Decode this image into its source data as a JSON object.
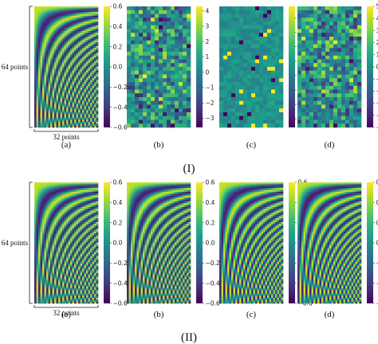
{
  "chart_data": [
    {
      "type": "heatmap",
      "group": "I",
      "caption": "(a)",
      "pattern": "basis",
      "colorbar_ticks": [
        0.6,
        0.4,
        0.2,
        0.0,
        -0.2,
        -0.4,
        -0.6
      ],
      "clim": [
        -0.6,
        0.6
      ],
      "annotations": [
        "64 points",
        "32 points"
      ]
    },
    {
      "type": "heatmap",
      "group": "I",
      "caption": "(b)",
      "pattern": "noise",
      "colorbar_ticks": [
        4,
        3,
        2,
        1,
        0,
        -1,
        -2,
        -3
      ],
      "clim": [
        -3.6,
        4.3
      ]
    },
    {
      "type": "heatmap",
      "group": "I",
      "caption": "(c)",
      "pattern": "sparse",
      "colorbar_ticks": [
        4,
        3,
        2,
        1,
        0,
        -1,
        -2,
        -3
      ],
      "clim": [
        -3.6,
        4.8
      ]
    },
    {
      "type": "heatmap",
      "group": "I",
      "caption": "(d)",
      "pattern": "noise",
      "colorbar_ticks": [
        5,
        4,
        3,
        2,
        1,
        0,
        -1,
        -2,
        -3,
        -4,
        -5
      ],
      "clim": [
        -5,
        5
      ]
    },
    {
      "type": "heatmap",
      "group": "II",
      "caption": "(a)",
      "pattern": "basis",
      "colorbar_ticks": [
        0.6,
        0.4,
        0.2,
        0.0,
        -0.2,
        -0.4,
        -0.6
      ],
      "clim": [
        -0.6,
        0.6
      ],
      "annotations": [
        "64 points",
        "32 points"
      ]
    },
    {
      "type": "heatmap",
      "group": "II",
      "caption": "(b)",
      "pattern": "basis",
      "colorbar_ticks": [
        0.6,
        0.4,
        0.2,
        0.0,
        -0.2,
        -0.4,
        -0.6
      ],
      "clim": [
        -0.6,
        0.6
      ]
    },
    {
      "type": "heatmap",
      "group": "II",
      "caption": "(c)",
      "pattern": "basis",
      "colorbar_ticks": [
        0.6,
        0.4,
        0.2,
        0.0,
        -0.2,
        -0.4,
        -0.6
      ],
      "clim": [
        -0.6,
        0.6
      ]
    },
    {
      "type": "heatmap",
      "group": "II",
      "caption": "(d)",
      "pattern": "basis",
      "colorbar_ticks": [
        0.6,
        0.4,
        0.2,
        0.0,
        -0.2,
        -0.4,
        -0.6
      ],
      "clim": [
        -0.6,
        0.6
      ]
    }
  ],
  "group_labels": [
    "(I)",
    "(II)"
  ],
  "colormap": [
    "#440154",
    "#482878",
    "#3e4989",
    "#31688e",
    "#26828e",
    "#1f9e89",
    "#35b779",
    "#6ece58",
    "#b5de2b",
    "#fde725"
  ]
}
